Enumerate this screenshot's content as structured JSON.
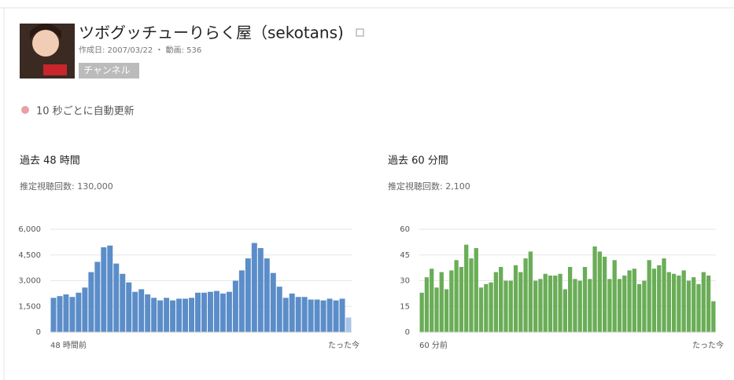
{
  "header": {
    "title": "ツボグッチューりらく屋（sekotans)",
    "meta": "作成日: 2007/03/22 ・ 動画: 536",
    "badge": "チャンネル"
  },
  "refresh": "10 秒ごとに自動更新",
  "chart_data": [
    {
      "type": "bar",
      "title": "過去 48 時間",
      "subtitle": "推定視聴回数: 130,000",
      "categories": [
        "48 時間前",
        null,
        null,
        null,
        null,
        null,
        null,
        null,
        null,
        null,
        null,
        null,
        null,
        null,
        null,
        null,
        null,
        null,
        null,
        null,
        null,
        null,
        null,
        null,
        null,
        null,
        null,
        null,
        null,
        null,
        null,
        null,
        null,
        null,
        null,
        null,
        null,
        null,
        null,
        null,
        null,
        null,
        null,
        null,
        null,
        null,
        null,
        "たった今"
      ],
      "values": [
        2000,
        2100,
        2200,
        2050,
        2300,
        2600,
        3500,
        4100,
        4950,
        5050,
        4000,
        3400,
        2900,
        2350,
        2500,
        2200,
        2000,
        1850,
        2000,
        1850,
        1950,
        1950,
        2000,
        2300,
        2300,
        2350,
        2400,
        2250,
        2350,
        3000,
        3600,
        4300,
        5200,
        4900,
        4300,
        3450,
        2650,
        2000,
        2250,
        2050,
        2050,
        1900,
        1900,
        1850,
        1950,
        1850,
        1950,
        850
      ],
      "color": "#5b8dc9",
      "partial_color": "#a9c4e8",
      "ylim": [
        0,
        6000
      ],
      "yticks": [
        0,
        {
          "value": 1500,
          "label": "1,500"
        },
        {
          "value": 3000,
          "label": "3,000"
        },
        {
          "value": 4500,
          "label": "4,500"
        },
        {
          "value": 6000,
          "label": "6,000"
        }
      ],
      "grid": true
    },
    {
      "type": "bar",
      "title": "過去 60 分間",
      "subtitle": "推定視聴回数: 2,100",
      "categories": [
        "60 分前",
        null,
        null,
        null,
        null,
        null,
        null,
        null,
        null,
        null,
        null,
        null,
        null,
        null,
        null,
        null,
        null,
        null,
        null,
        null,
        null,
        null,
        null,
        null,
        null,
        null,
        null,
        null,
        null,
        null,
        null,
        null,
        null,
        null,
        null,
        null,
        null,
        null,
        null,
        null,
        null,
        null,
        null,
        null,
        null,
        null,
        null,
        null,
        null,
        null,
        null,
        null,
        null,
        null,
        null,
        null,
        null,
        null,
        null,
        "たった今"
      ],
      "values": [
        23,
        32,
        37,
        26,
        35,
        25,
        36,
        42,
        38,
        51,
        43,
        49,
        26,
        28,
        29,
        35,
        38,
        30,
        30,
        39,
        35,
        43,
        47,
        30,
        31,
        34,
        33,
        33,
        34,
        25,
        38,
        31,
        30,
        38,
        31,
        50,
        47,
        44,
        31,
        42,
        31,
        33,
        36,
        37,
        28,
        30,
        42,
        37,
        39,
        43,
        35,
        34,
        33,
        36,
        30,
        32,
        28,
        35,
        33,
        18
      ],
      "color": "#6aad57",
      "ylim": [
        0,
        60
      ],
      "yticks": [
        0,
        15,
        30,
        45,
        60
      ],
      "grid": true
    }
  ]
}
